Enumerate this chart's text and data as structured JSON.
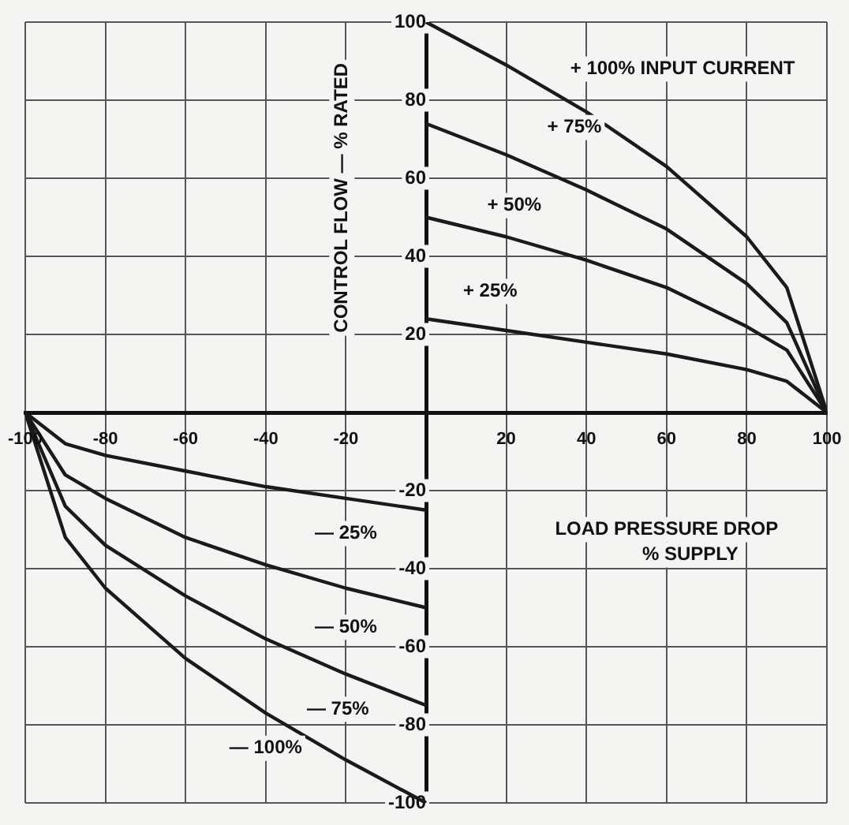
{
  "chart_data": {
    "type": "line",
    "xlabel": "LOAD PRESSURE DROP\n% SUPPLY",
    "ylabel": "CONTROL FLOW — % RATED",
    "xlim": [
      -100,
      100
    ],
    "ylim": [
      -100,
      100
    ],
    "xticks": [
      -100,
      -80,
      -60,
      -40,
      -20,
      {
        "value": 0,
        "label": null
      },
      20,
      40,
      60,
      80,
      100
    ],
    "yticks": [
      -100,
      -80,
      -60,
      -40,
      -20,
      {
        "value": 0,
        "label": null
      },
      20,
      40,
      60,
      80,
      100
    ],
    "grid": true,
    "marker": "none",
    "line_style": "solid",
    "series": [
      {
        "color": "#1a1a1a",
        "x": [
          0,
          20,
          40,
          60,
          80,
          90,
          100
        ],
        "values": [
          100,
          89,
          77,
          63,
          45,
          32,
          0
        ]
      },
      {
        "color": "#1a1a1a",
        "x": [
          0,
          20,
          40,
          60,
          80,
          90,
          100
        ],
        "values": [
          74,
          66,
          57,
          47,
          33,
          23,
          0
        ]
      },
      {
        "color": "#1a1a1a",
        "x": [
          0,
          20,
          40,
          60,
          80,
          90,
          100
        ],
        "values": [
          50,
          45,
          39,
          32,
          22,
          16,
          0
        ]
      },
      {
        "color": "#1a1a1a",
        "x": [
          0,
          20,
          40,
          60,
          80,
          90,
          100
        ],
        "values": [
          24,
          21,
          18,
          15,
          11,
          8,
          0
        ]
      },
      {
        "color": "#1a1a1a",
        "x": [
          -100,
          -90,
          -80,
          -60,
          -40,
          -20,
          0
        ],
        "values": [
          0,
          -8,
          -11,
          -15,
          -19,
          -22,
          -25
        ]
      },
      {
        "color": "#1a1a1a",
        "x": [
          -100,
          -90,
          -80,
          -60,
          -40,
          -20,
          0
        ],
        "values": [
          0,
          -16,
          -22,
          -32,
          -39,
          -45,
          -50
        ]
      },
      {
        "color": "#1a1a1a",
        "x": [
          -100,
          -90,
          -80,
          -60,
          -40,
          -20,
          0
        ],
        "values": [
          0,
          -24,
          -34,
          -47,
          -58,
          -67,
          -75
        ]
      },
      {
        "color": "#1a1a1a",
        "x": [
          -100,
          -90,
          -80,
          -60,
          -40,
          -20,
          0
        ],
        "values": [
          0,
          -32,
          -45,
          -63,
          -77,
          -89,
          -100
        ]
      }
    ],
    "annotations": [
      "+ 100% INPUT CURRENT",
      {
        "text": "+ 75%",
        "x": 37,
        "y": 73
      },
      {
        "text": "+ 50%",
        "x": 22,
        "y": 53
      },
      {
        "text": "+ 25%",
        "x": 16,
        "y": 31
      },
      {
        "text": "— 25%",
        "x": -20,
        "y": -31
      },
      {
        "text": "— 50%",
        "x": -20,
        "y": -55
      },
      {
        "text": "— 75%",
        "x": -22,
        "y": -76
      },
      "— 100%"
    ]
  }
}
